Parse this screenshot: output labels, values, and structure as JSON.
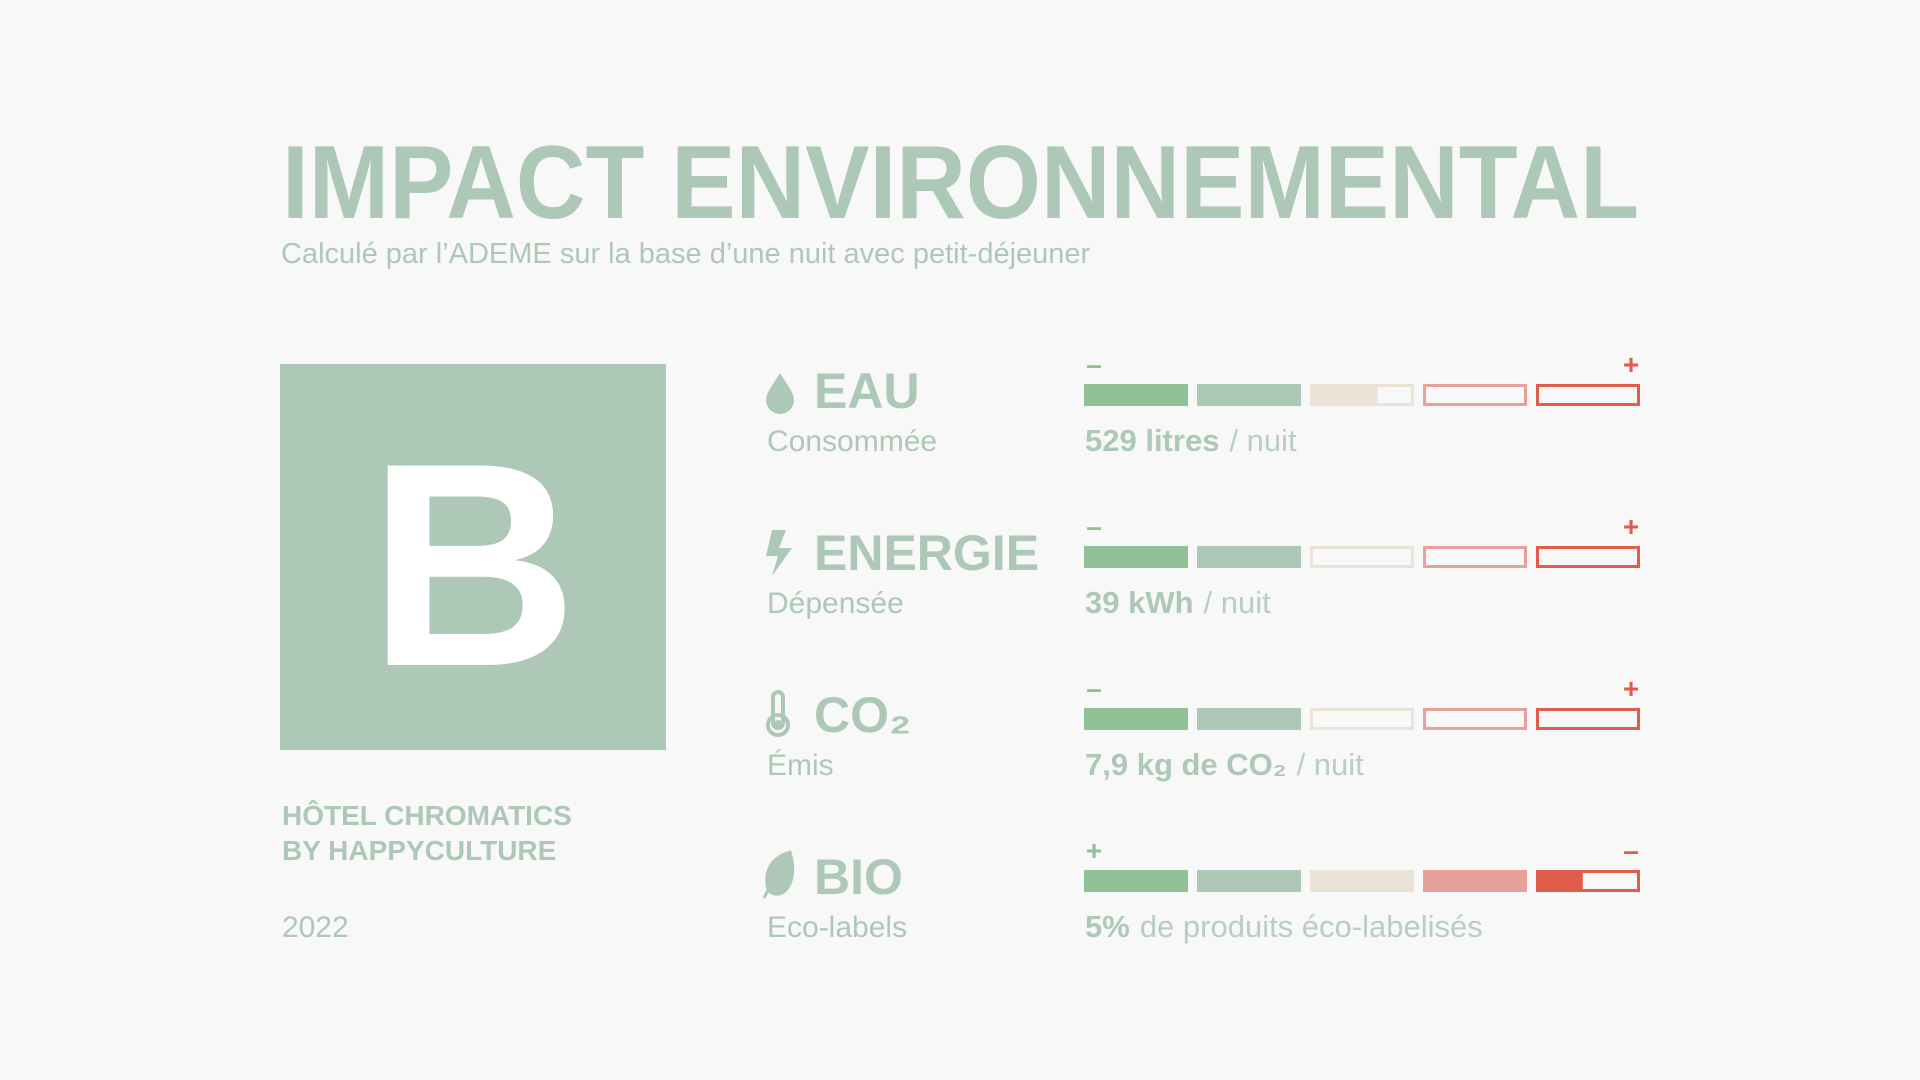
{
  "header": {
    "title": "IMPACT ENVIRONNEMENTAL",
    "subtitle": "Calculé par l’ADEME sur la base d’une nuit avec petit-déjeuner"
  },
  "grade": "B",
  "hotel": {
    "lines": [
      "HÔTEL CHROMATICS",
      "BY HAPPYCULTURE"
    ],
    "year": "2022"
  },
  "indicators": [
    {
      "name": "EAU",
      "qualifier": "Consommée",
      "value": "529 litres",
      "rest": "/ nuit",
      "low": "–",
      "high": "+",
      "level": 2.65
    },
    {
      "name": "ENERGIE",
      "qualifier": "Dépensée",
      "value": "39 kWh",
      "rest": "/ nuit",
      "low": "–",
      "high": "+",
      "level": 2
    },
    {
      "name": "CO₂",
      "qualifier": "Émis",
      "value": "7,9 kg de CO₂",
      "rest": "/ nuit",
      "low": "–",
      "high": "+",
      "level": 2
    },
    {
      "name": "BIO",
      "qualifier": "Eco-labels",
      "value": "5%",
      "rest": "de produits éco-labelisés",
      "low": "+",
      "high": "–",
      "level": 4.45
    }
  ]
}
